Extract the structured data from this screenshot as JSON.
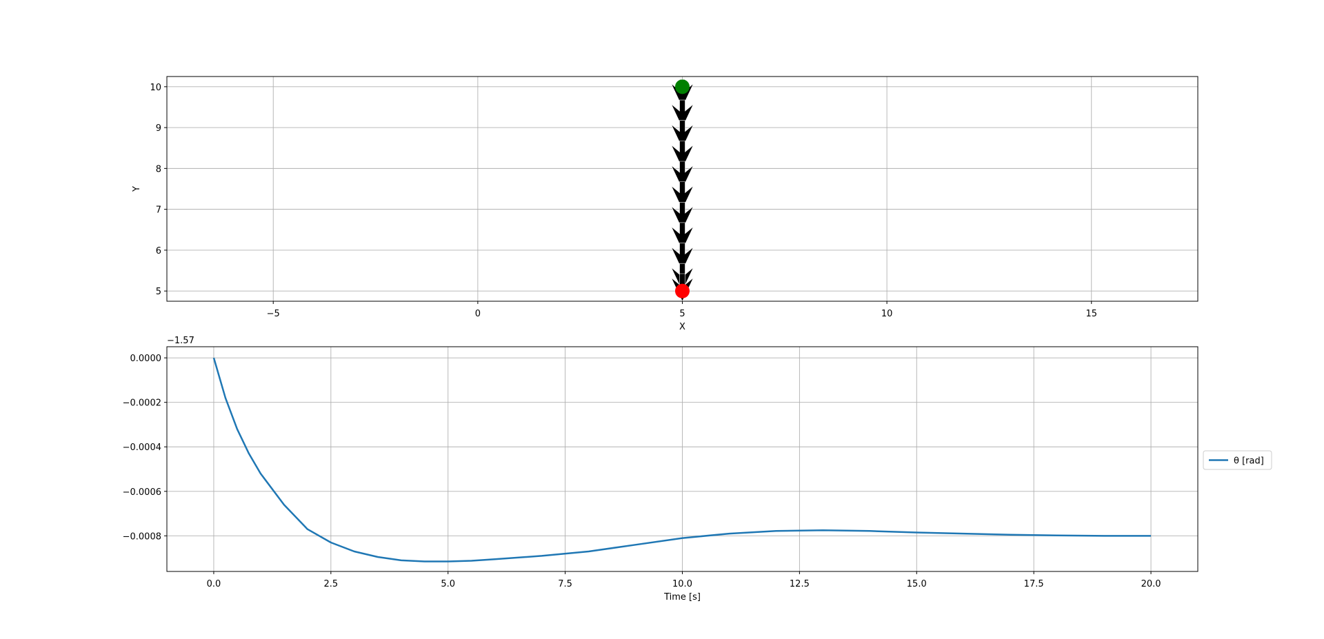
{
  "colors": {
    "line": "#1f77b4",
    "start_marker": "#ff0000",
    "end_marker": "#008000",
    "arrow": "#000000",
    "grid": "#b0b0b0"
  },
  "chart_data": [
    {
      "type": "scatter",
      "title": "",
      "xlabel": "X",
      "ylabel": "Y",
      "xlim": [
        -7.6,
        17.6
      ],
      "ylim": [
        4.75,
        10.25
      ],
      "xticks": [
        -5,
        0,
        5,
        10,
        15
      ],
      "xtick_labels": [
        "−5",
        "0",
        "5",
        "10",
        "15"
      ],
      "yticks": [
        5,
        6,
        7,
        8,
        9,
        10
      ],
      "ytick_labels": [
        "5",
        "6",
        "7",
        "8",
        "9",
        "10"
      ],
      "grid": true,
      "path": {
        "x": [
          5,
          5
        ],
        "y": [
          5,
          10
        ]
      },
      "start": {
        "x": 5,
        "y": 5
      },
      "end": {
        "x": 5,
        "y": 10
      },
      "arrows": {
        "x": [
          5,
          5,
          5,
          5,
          5,
          5,
          5,
          5,
          5,
          5,
          5
        ],
        "y": [
          9.5,
          9.0,
          8.5,
          8.0,
          7.5,
          7.0,
          6.5,
          6.0,
          5.5,
          5.0,
          4.75
        ],
        "direction": "down"
      }
    },
    {
      "type": "line",
      "title": "",
      "xlabel": "Time [s]",
      "ylabel": "",
      "offset_label": "−1.57",
      "xlim": [
        -1.0,
        21.0
      ],
      "ylim": [
        -0.00096,
        5e-05
      ],
      "xticks": [
        0.0,
        2.5,
        5.0,
        7.5,
        10.0,
        12.5,
        15.0,
        17.5,
        20.0
      ],
      "xtick_labels": [
        "0.0",
        "2.5",
        "5.0",
        "7.5",
        "10.0",
        "12.5",
        "15.0",
        "17.5",
        "20.0"
      ],
      "yticks": [
        0.0,
        -0.0002,
        -0.0004,
        -0.0006,
        -0.0008
      ],
      "ytick_labels": [
        "0.0000",
        "−0.0002",
        "−0.0004",
        "−0.0006",
        "−0.0008"
      ],
      "grid": true,
      "legend_position": "outside-right",
      "series": [
        {
          "name": "θ [rad]",
          "x": [
            0.0,
            0.25,
            0.5,
            0.75,
            1.0,
            1.5,
            2.0,
            2.5,
            3.0,
            3.5,
            4.0,
            4.5,
            5.0,
            5.5,
            6.0,
            7.0,
            8.0,
            9.0,
            10.0,
            11.0,
            12.0,
            13.0,
            14.0,
            15.0,
            16.0,
            17.0,
            18.0,
            19.0,
            20.0
          ],
          "y": [
            0.0,
            -0.00018,
            -0.00032,
            -0.00043,
            -0.00052,
            -0.00066,
            -0.00077,
            -0.00083,
            -0.00087,
            -0.000895,
            -0.00091,
            -0.000915,
            -0.000915,
            -0.000912,
            -0.000905,
            -0.00089,
            -0.00087,
            -0.00084,
            -0.00081,
            -0.00079,
            -0.000778,
            -0.000775,
            -0.000778,
            -0.000785,
            -0.00079,
            -0.000795,
            -0.000798,
            -0.0008,
            -0.0008
          ]
        }
      ]
    }
  ]
}
